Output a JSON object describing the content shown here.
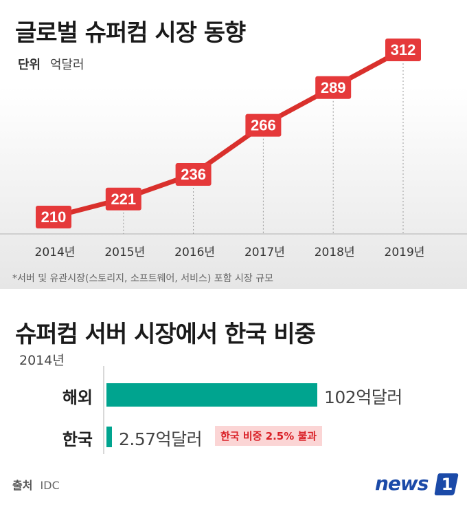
{
  "header": {
    "title": "글로벌 슈퍼컴 시장 동향",
    "unit_label": "단위",
    "unit_value": "억달러"
  },
  "footnote": "*서버 및 유관시장(스토리지, 소프트웨어, 서비스) 포함 시장 규모",
  "section2": {
    "title": "슈퍼컴 서버 시장에서 한국 비중",
    "year": "2014년",
    "highlight": "한국 비중 2.5% 불과"
  },
  "source": {
    "label": "출처",
    "value": "IDC"
  },
  "logo": {
    "text": "news",
    "mark": "1"
  },
  "colors": {
    "line": "#d9302c",
    "label_box": "#e5393a",
    "bar": "#00a48f",
    "highlight_bg": "#fbd5d5",
    "highlight_text": "#d91f26"
  },
  "chart_data": [
    {
      "type": "line",
      "title": "글로벌 슈퍼컴 시장 동향",
      "ylabel": "억달러",
      "x": [
        "2014년",
        "2015년",
        "2016년",
        "2017년",
        "2018년",
        "2019년"
      ],
      "values": [
        210,
        221,
        236,
        266,
        289,
        312
      ],
      "data_labels": [
        "210",
        "221",
        "236",
        "266",
        "289",
        "312"
      ],
      "grid": false,
      "legend": "none"
    },
    {
      "type": "bar",
      "orientation": "horizontal",
      "title": "슈퍼컴 서버 시장에서 한국 비중",
      "subtitle": "2014년",
      "categories": [
        "해외",
        "한국"
      ],
      "values": [
        102,
        2.57
      ],
      "value_labels": [
        "102억달러",
        "2.57억달러"
      ],
      "annotation": "한국 비중 2.5% 불과"
    }
  ]
}
